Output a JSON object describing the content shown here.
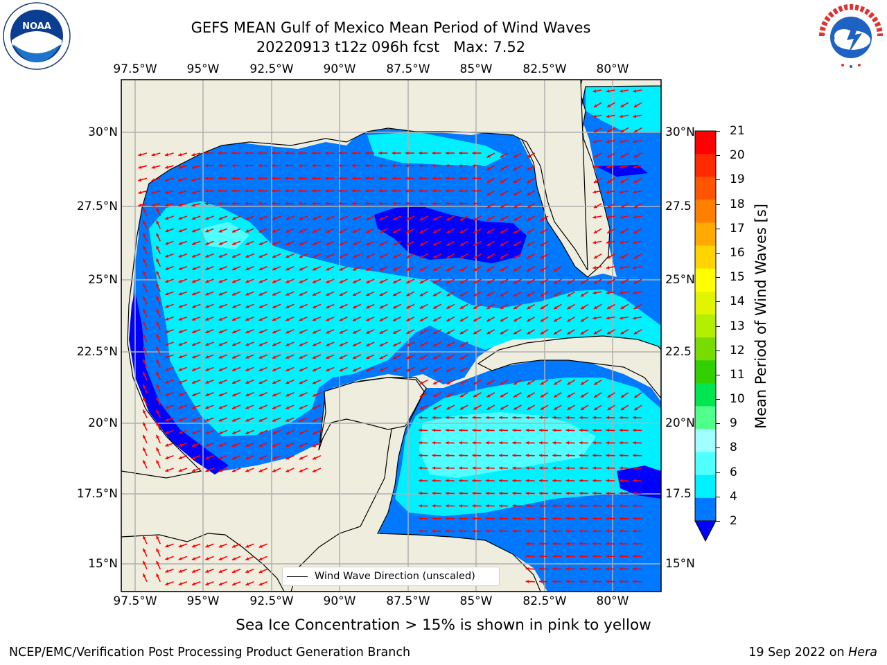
{
  "title": {
    "line1": "GEFS MEAN Gulf of Mexico Mean Period of Wind Waves",
    "line2": "20220913 t12z 096h fcst   Max: 7.52"
  },
  "logos": {
    "left": "NOAA",
    "right": "NATIONAL WEATHER SERVICE"
  },
  "map": {
    "region": "Gulf of Mexico",
    "lon_ticks": [
      "97.5°W",
      "95°W",
      "92.5°W",
      "90°W",
      "87.5°W",
      "85°W",
      "82.5°W",
      "80°W"
    ],
    "lat_ticks": [
      "30°N",
      "27.5°N",
      "25°N",
      "22.5°N",
      "20°N",
      "17.5°N",
      "15°N"
    ],
    "lat_ticks_right": [
      "30°N",
      "27.5",
      "25°N",
      "22.5",
      "20°N",
      "17.5",
      "15°N"
    ],
    "legend_label": "Wind Wave Direction (unscaled)",
    "colors": {
      "land": "#efedde",
      "grid": "#b0b0b0",
      "arrow": "#ff0000"
    }
  },
  "colorbar": {
    "label": "Mean Period of Wind Waves [s]",
    "ticks": [
      "21",
      "20",
      "19",
      "18",
      "17",
      "16",
      "15",
      "14",
      "13",
      "12",
      "11",
      "10",
      "9",
      "8",
      "6",
      "4",
      "2"
    ],
    "colors": [
      "#ff0000",
      "#ff2a00",
      "#ff5500",
      "#ff7f00",
      "#ffaa00",
      "#ffd400",
      "#ffff00",
      "#e1f500",
      "#b4ee00",
      "#78dc00",
      "#32d000",
      "#00e650",
      "#50ff8c",
      "#a0ffff",
      "#50ffff",
      "#00f0ff",
      "#0078ff"
    ],
    "extend_color": "#0000ff"
  },
  "caption": "Sea Ice Concentration > 15% is shown in pink to yellow",
  "footer": {
    "left": "NCEP/EMC/Verification Post Processing Product Generation Branch",
    "right_date": "19 Sep 2022 on",
    "right_host": "Hera"
  }
}
